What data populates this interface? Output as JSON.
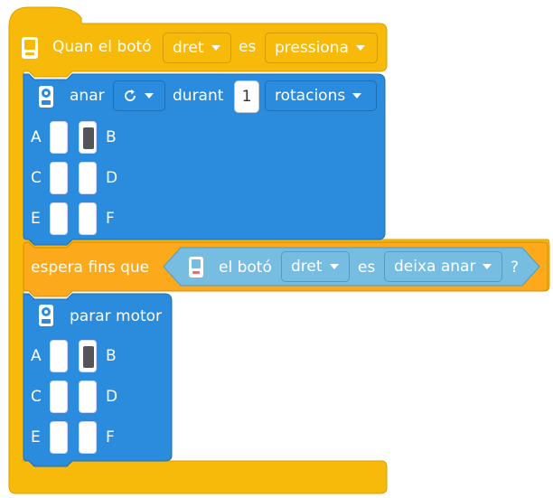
{
  "event_block": {
    "label_when": "Quan el botó",
    "button_value": "dret",
    "label_is": "es",
    "state_value": "pressiona"
  },
  "run_block": {
    "label": "anar",
    "direction_icon": "rotate-clockwise-icon",
    "label_during": "durant",
    "amount": "1",
    "unit_value": "rotacions",
    "ports": [
      {
        "left": "A",
        "right": "B",
        "left_on": false,
        "right_on": true
      },
      {
        "left": "C",
        "right": "D",
        "left_on": false,
        "right_on": false
      },
      {
        "left": "E",
        "right": "F",
        "left_on": false,
        "right_on": false
      }
    ]
  },
  "wait_block": {
    "label": "espera fins que",
    "cond_label": "el botó",
    "button_value": "dret",
    "label_is": "es",
    "state_value": "deixa anar",
    "question": "?"
  },
  "stop_block": {
    "label": "parar motor",
    "ports": [
      {
        "left": "A",
        "right": "B",
        "left_on": false,
        "right_on": true
      },
      {
        "left": "C",
        "right": "D",
        "left_on": false,
        "right_on": false
      },
      {
        "left": "E",
        "right": "F",
        "left_on": false,
        "right_on": false
      }
    ]
  },
  "colors": {
    "event_yellow": "#f8ba0a",
    "motion_blue": "#2b8cdd",
    "control_orange": "#fcaa1c",
    "sensing_light_blue": "#77bde2"
  }
}
